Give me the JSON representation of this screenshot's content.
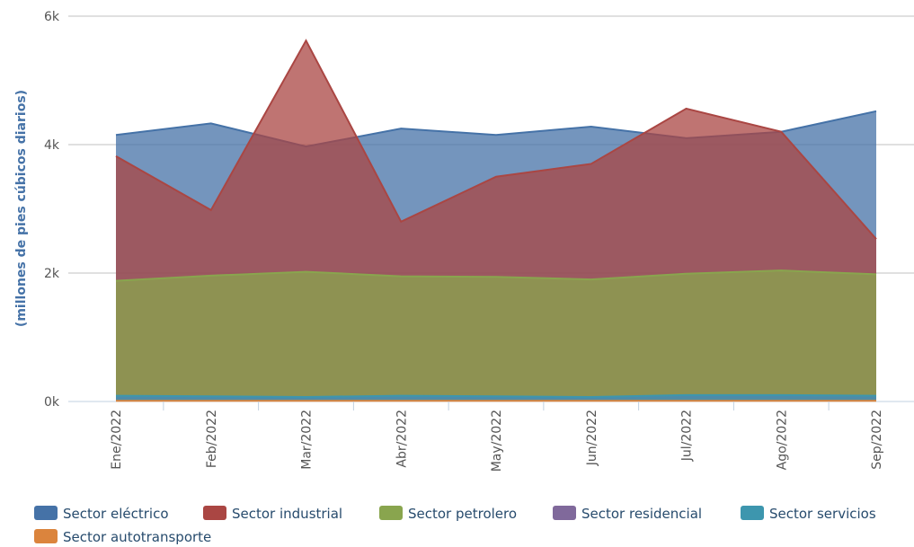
{
  "chart_data": {
    "type": "area",
    "y_label": "(millones de pies cúbicos diarios)",
    "categories": [
      "Ene/2022",
      "Feb/2022",
      "Mar/2022",
      "Abr/2022",
      "May/2022",
      "Jun/2022",
      "Jul/2022",
      "Ago/2022",
      "Sep/2022"
    ],
    "series": [
      {
        "name": "Sector eléctrico",
        "color": "#4572A7",
        "values": [
          4150,
          4330,
          3970,
          4250,
          4150,
          4280,
          4100,
          4200,
          4520
        ]
      },
      {
        "name": "Sector industrial",
        "color": "#AA4643",
        "values": [
          3820,
          2980,
          5620,
          2800,
          3500,
          3700,
          4560,
          4200,
          2530
        ]
      },
      {
        "name": "Sector petrolero",
        "color": "#89A54E",
        "values": [
          1880,
          1960,
          2020,
          1950,
          1940,
          1900,
          1990,
          2040,
          1980
        ]
      },
      {
        "name": "Sector residencial",
        "color": "#80699B",
        "values": [
          60,
          60,
          50,
          60,
          60,
          50,
          70,
          70,
          60
        ]
      },
      {
        "name": "Sector servicios",
        "color": "#3D96AE",
        "values": [
          90,
          80,
          70,
          90,
          80,
          70,
          100,
          100,
          90
        ]
      },
      {
        "name": "Sector autotransporte",
        "color": "#DB843D",
        "values": [
          10,
          10,
          10,
          10,
          10,
          10,
          10,
          10,
          10
        ]
      }
    ],
    "ylim": [
      0,
      6000
    ],
    "yticks": [
      {
        "value": 0,
        "label": "0k"
      },
      {
        "value": 2000,
        "label": "2k"
      },
      {
        "value": 4000,
        "label": "4k"
      },
      {
        "value": 6000,
        "label": "6k"
      }
    ],
    "grid": true
  }
}
